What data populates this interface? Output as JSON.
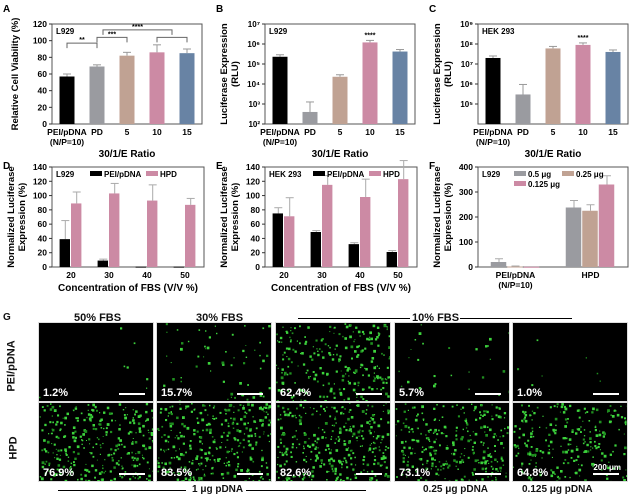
{
  "chart_data": [
    {
      "panel": "A",
      "type": "bar",
      "cell_line": "L929",
      "ylabel": "Relative Cell Viability (%)",
      "xlabel": "30/1/E Ratio",
      "categories": [
        "PEI/pDNA\n(N/P=10)",
        "PD",
        "5",
        "10",
        "15"
      ],
      "values": [
        57,
        69,
        82,
        86,
        85
      ],
      "errors": [
        3,
        2,
        4,
        9,
        5
      ],
      "colors": [
        "#000000",
        "#9a9ba0",
        "#c0a293",
        "#cc8aa4",
        "#6883a4"
      ],
      "ylim": [
        0,
        120
      ],
      "yticks": [
        0,
        20,
        40,
        60,
        80,
        100,
        120
      ],
      "significance": [
        "**",
        "***",
        "****"
      ]
    },
    {
      "panel": "B",
      "type": "bar",
      "scale": "log",
      "cell_line": "L929",
      "ylabel": "Luciferase Expression (RLU)",
      "xlabel": "30/1/E Ratio",
      "categories": [
        "PEI/pDNA\n(N/P=10)",
        "PD",
        "5",
        "10",
        "15"
      ],
      "values": [
        230000,
        400,
        23000,
        1200000,
        420000
      ],
      "colors": [
        "#000000",
        "#9a9ba0",
        "#c0a293",
        "#cc8aa4",
        "#6883a4"
      ],
      "ylim_exp": [
        2,
        7
      ],
      "yticks": [
        "10²",
        "10³",
        "10⁴",
        "10⁵",
        "10⁶",
        "10⁷"
      ],
      "significance": [
        "****"
      ]
    },
    {
      "panel": "C",
      "type": "bar",
      "scale": "log",
      "cell_line": "HEK 293",
      "ylabel": "Luciferase Expression (RLU)",
      "xlabel": "30/1/E Ratio",
      "categories": [
        "PEI/pDNA\n(N/P=10)",
        "PD",
        "5",
        "10",
        "15"
      ],
      "values": [
        20000000,
        300000,
        60000000,
        90000000,
        40000000
      ],
      "colors": [
        "#000000",
        "#9a9ba0",
        "#c0a293",
        "#cc8aa4",
        "#6883a4"
      ],
      "ylim_exp": [
        4,
        9
      ],
      "yticks": [
        "10⁵",
        "10⁶",
        "10⁷",
        "10⁸",
        "10⁹"
      ],
      "significance": [
        "****"
      ]
    },
    {
      "panel": "D",
      "type": "bar",
      "cell_line": "L929",
      "ylabel": "Normalized Luciferase Expression (%)",
      "xlabel": "Concentration  of FBS (V/V %)",
      "categories": [
        "20",
        "30",
        "40",
        "50"
      ],
      "series": [
        {
          "name": "PEI/pDNA",
          "color": "#000000",
          "values": [
            39,
            9,
            0.5,
            0.5
          ],
          "errors": [
            26,
            2,
            0,
            0
          ]
        },
        {
          "name": "HPD",
          "color": "#cc8aa4",
          "values": [
            89,
            103,
            93,
            87
          ],
          "errors": [
            16,
            14,
            22,
            9
          ]
        }
      ],
      "ylim": [
        0,
        140
      ],
      "yticks": [
        0,
        20,
        40,
        60,
        80,
        100,
        120,
        140
      ]
    },
    {
      "panel": "E",
      "type": "bar",
      "cell_line": "HEK 293",
      "ylabel": "Normalized Luciferase Expression (%)",
      "xlabel": "Concentration  of FBS (V/V %)",
      "categories": [
        "20",
        "30",
        "40",
        "50"
      ],
      "series": [
        {
          "name": "PEI/pDNA",
          "color": "#000000",
          "values": [
            75,
            49,
            32,
            21
          ],
          "errors": [
            8,
            2,
            2,
            2
          ]
        },
        {
          "name": "HPD",
          "color": "#cc8aa4",
          "values": [
            71,
            115,
            98,
            123
          ],
          "errors": [
            26,
            13,
            25,
            26
          ]
        }
      ],
      "ylim": [
        0,
        140
      ],
      "yticks": [
        0,
        20,
        40,
        60,
        80,
        100,
        120,
        140
      ]
    },
    {
      "panel": "F",
      "type": "bar",
      "cell_line": "L929",
      "ylabel": "Normalized Luciferase Expression (%)",
      "categories": [
        "PEI/pDNA\n(N/P=10)",
        "HPD"
      ],
      "series": [
        {
          "name": "0.5 μg",
          "color": "#9a9ba0",
          "values": [
            20,
            238
          ],
          "errors": [
            13,
            28
          ]
        },
        {
          "name": "0.25 μg",
          "color": "#c0a293",
          "values": [
            2,
            225
          ],
          "errors": [
            2,
            24
          ]
        },
        {
          "name": "0.125 μg",
          "color": "#cc8aa4",
          "values": [
            1,
            330
          ],
          "errors": [
            0,
            35
          ]
        }
      ],
      "ylim": [
        0,
        400
      ],
      "yticks": [
        0,
        100,
        200,
        300,
        400
      ]
    }
  ],
  "panel_g": {
    "letter": "G",
    "column_headers": [
      "50% FBS",
      "30% FBS",
      "10% FBS"
    ],
    "row_labels": [
      "PEI/pDNA",
      "HPD"
    ],
    "row1_percents": [
      "1.2%",
      "15.7%",
      "62.4%",
      "5.7%",
      "1.0%"
    ],
    "row2_percents": [
      "76.9%",
      "83.5%",
      "82.6%",
      "73.1%",
      "64.8%"
    ],
    "row1_density": [
      0.01,
      0.15,
      0.6,
      0.06,
      0.01
    ],
    "row2_density": [
      0.75,
      0.8,
      0.8,
      0.7,
      0.62
    ],
    "scale_bar": "200 μm",
    "bottom_labels": [
      "1 μg pDNA",
      "0.25 μg pDNA",
      "0.125 μg pDNA"
    ]
  },
  "letters": [
    "A",
    "B",
    "C",
    "D",
    "E",
    "F"
  ]
}
